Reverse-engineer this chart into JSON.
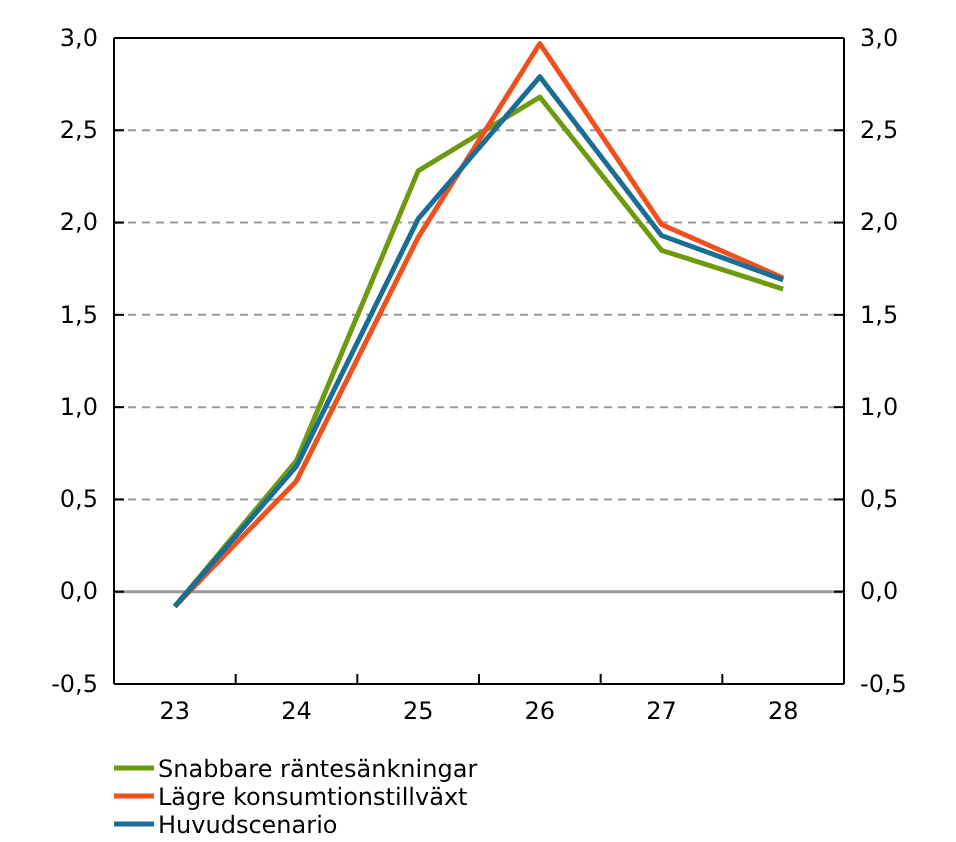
{
  "chart_data": {
    "type": "line",
    "categories": [
      "23",
      "24",
      "25",
      "26",
      "27",
      "28"
    ],
    "series": [
      {
        "name": "Snabbare räntesänkningar",
        "color": "#6e9a0f",
        "values": [
          -0.08,
          0.71,
          2.28,
          2.68,
          1.85,
          1.64
        ]
      },
      {
        "name": "Lägre konsumtionstillväxt",
        "color": "#f0501e",
        "values": [
          -0.08,
          0.6,
          1.92,
          2.97,
          1.99,
          1.7
        ]
      },
      {
        "name": "Huvudscenario",
        "color": "#1a6e96",
        "values": [
          -0.08,
          0.68,
          2.02,
          2.79,
          1.93,
          1.69
        ]
      }
    ],
    "ylim": [
      -0.5,
      3.0
    ],
    "yticks": [
      {
        "value": -0.5,
        "label": "-0,5"
      },
      {
        "value": 0,
        "label": "0,0"
      },
      {
        "value": 0.5,
        "label": "0,5"
      },
      {
        "value": 1,
        "label": "1,0"
      },
      {
        "value": 1.5,
        "label": "1,5"
      },
      {
        "value": 2,
        "label": "2,0"
      },
      {
        "value": 2.5,
        "label": "2,5"
      },
      {
        "value": 3,
        "label": "3,0"
      }
    ],
    "y2lim": [
      -0.5,
      3.0
    ],
    "y2ticks": [
      {
        "value": -0.5,
        "label": "-0,5"
      },
      {
        "value": 0,
        "label": "0,0"
      },
      {
        "value": 0.5,
        "label": "0,5"
      },
      {
        "value": 1,
        "label": "1,0"
      },
      {
        "value": 1.5,
        "label": "1,5"
      },
      {
        "value": 2,
        "label": "2,0"
      },
      {
        "value": 2.5,
        "label": "2,5"
      },
      {
        "value": 3,
        "label": "3,0"
      }
    ],
    "ref_lines": [
      {
        "axis": "y",
        "value": 0,
        "color": "#999999"
      }
    ],
    "grid": "y",
    "legend": "bottom",
    "line_style": "solid",
    "marker": "none"
  }
}
